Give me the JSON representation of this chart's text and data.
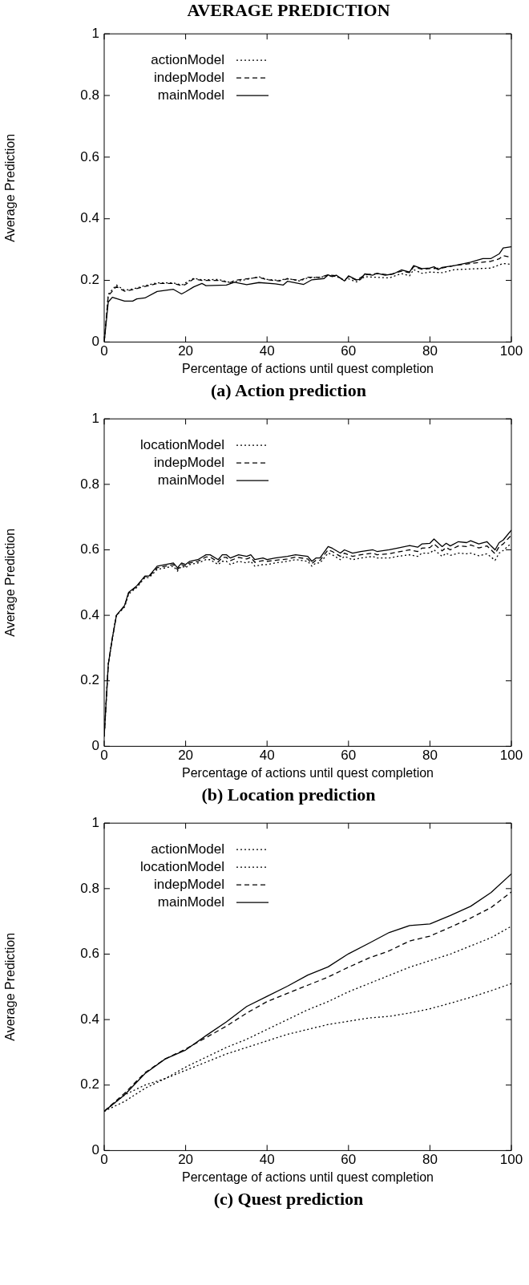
{
  "chart_data": [
    {
      "type": "line",
      "title": "AVERAGE PREDICTION",
      "xlabel": "Percentage of actions until quest completion",
      "ylabel": "Average Prediction",
      "xlim": [
        0,
        100
      ],
      "xticks": [
        0,
        20,
        40,
        60,
        80,
        100
      ],
      "ylim": [
        0,
        1
      ],
      "yticks": [
        0,
        0.2,
        0.4,
        0.6,
        0.8,
        1
      ],
      "grid": false,
      "legend": "top left",
      "marker": "none",
      "annotations": [
        "(a) Action prediction"
      ],
      "series": [
        {
          "name": "actionModel",
          "color": "#000000",
          "line_style": "dotted",
          "x": [
            0,
            1,
            3,
            5,
            7,
            10,
            13,
            17,
            19,
            22,
            24,
            28,
            31,
            35,
            38,
            40,
            43,
            45,
            48,
            50,
            53,
            55,
            57,
            59,
            60,
            62,
            64,
            67,
            70,
            73,
            75,
            76,
            78,
            80,
            83,
            86,
            90,
            95,
            98,
            100
          ],
          "values": [
            0,
            0.155,
            0.185,
            0.168,
            0.172,
            0.183,
            0.192,
            0.192,
            0.185,
            0.207,
            0.202,
            0.203,
            0.193,
            0.203,
            0.212,
            0.203,
            0.2,
            0.206,
            0.198,
            0.208,
            0.21,
            0.215,
            0.213,
            0.2,
            0.205,
            0.195,
            0.212,
            0.21,
            0.208,
            0.222,
            0.215,
            0.235,
            0.223,
            0.227,
            0.225,
            0.235,
            0.237,
            0.24,
            0.255,
            0.252
          ]
        },
        {
          "name": "indepModel",
          "color": "#000000",
          "line_style": "dashed",
          "x": [
            0,
            1,
            3,
            5,
            7,
            10,
            13,
            17,
            19,
            20,
            22,
            24,
            28,
            31,
            32,
            35,
            38,
            40,
            43,
            45,
            48,
            50,
            53,
            55,
            57,
            59,
            60,
            62,
            64,
            67,
            70,
            73,
            75,
            76,
            78,
            80,
            83,
            86,
            90,
            95,
            97,
            98,
            100
          ],
          "values": [
            0,
            0.15,
            0.18,
            0.165,
            0.17,
            0.18,
            0.19,
            0.19,
            0.183,
            0.187,
            0.205,
            0.2,
            0.2,
            0.193,
            0.2,
            0.205,
            0.21,
            0.202,
            0.198,
            0.205,
            0.2,
            0.21,
            0.21,
            0.218,
            0.215,
            0.2,
            0.212,
            0.2,
            0.218,
            0.222,
            0.218,
            0.23,
            0.225,
            0.245,
            0.236,
            0.238,
            0.24,
            0.248,
            0.255,
            0.262,
            0.27,
            0.28,
            0.275
          ]
        },
        {
          "name": "mainModel",
          "color": "#000000",
          "line_style": "solid",
          "x": [
            0,
            1,
            2,
            5,
            7,
            8,
            10,
            13,
            17,
            19,
            20,
            22,
            24,
            25,
            30,
            32,
            35,
            38,
            42,
            44,
            45,
            49,
            51,
            54,
            55,
            56,
            57,
            59,
            60,
            62,
            63,
            64,
            66,
            67,
            69,
            71,
            73,
            75,
            76,
            78,
            80,
            81,
            82,
            83,
            86,
            90,
            93,
            95,
            97,
            98,
            100
          ],
          "values": [
            0,
            0.13,
            0.145,
            0.133,
            0.133,
            0.14,
            0.143,
            0.164,
            0.171,
            0.156,
            0.163,
            0.179,
            0.19,
            0.183,
            0.185,
            0.194,
            0.186,
            0.193,
            0.189,
            0.185,
            0.197,
            0.187,
            0.202,
            0.206,
            0.218,
            0.212,
            0.217,
            0.198,
            0.215,
            0.202,
            0.204,
            0.221,
            0.217,
            0.223,
            0.217,
            0.221,
            0.234,
            0.227,
            0.248,
            0.238,
            0.24,
            0.244,
            0.235,
            0.242,
            0.248,
            0.259,
            0.271,
            0.271,
            0.286,
            0.305,
            0.309
          ]
        }
      ]
    },
    {
      "type": "line",
      "xlabel": "Percentage of actions until quest completion",
      "ylabel": "Average Prediction",
      "xlim": [
        0,
        100
      ],
      "xticks": [
        0,
        20,
        40,
        60,
        80,
        100
      ],
      "ylim": [
        0,
        1
      ],
      "yticks": [
        0,
        0.2,
        0.4,
        0.6,
        0.8,
        1
      ],
      "grid": false,
      "legend": "top left",
      "marker": "none",
      "annotations": [
        "(b) Location prediction"
      ],
      "series": [
        {
          "name": "locationModel",
          "color": "#000000",
          "line_style": "dotted",
          "x": [
            0,
            1,
            2,
            3,
            5,
            6,
            8,
            10,
            11,
            13,
            15,
            17,
            18,
            19,
            20,
            21,
            23,
            25,
            26,
            28,
            29,
            30,
            31,
            33,
            35,
            36,
            37,
            39,
            40,
            42,
            45,
            47,
            50,
            51,
            52,
            53,
            55,
            56,
            58,
            59,
            61,
            63,
            66,
            67,
            70,
            72,
            75,
            77,
            78,
            80,
            81,
            83,
            84,
            85,
            87,
            89,
            90,
            92,
            94,
            95,
            96,
            97,
            98,
            100
          ],
          "values": [
            0.03,
            0.25,
            0.33,
            0.4,
            0.425,
            0.465,
            0.485,
            0.515,
            0.515,
            0.54,
            0.545,
            0.55,
            0.535,
            0.55,
            0.545,
            0.555,
            0.56,
            0.57,
            0.57,
            0.555,
            0.565,
            0.565,
            0.555,
            0.565,
            0.56,
            0.565,
            0.55,
            0.555,
            0.555,
            0.56,
            0.565,
            0.57,
            0.565,
            0.55,
            0.56,
            0.56,
            0.59,
            0.585,
            0.57,
            0.58,
            0.57,
            0.575,
            0.58,
            0.575,
            0.575,
            0.58,
            0.585,
            0.58,
            0.59,
            0.59,
            0.6,
            0.58,
            0.59,
            0.583,
            0.59,
            0.588,
            0.59,
            0.582,
            0.588,
            0.578,
            0.568,
            0.59,
            0.598,
            0.62
          ]
        },
        {
          "name": "indepModel",
          "color": "#000000",
          "line_style": "dashed",
          "x": [
            0,
            1,
            2,
            3,
            5,
            6,
            8,
            10,
            11,
            13,
            15,
            17,
            18,
            19,
            20,
            21,
            23,
            25,
            26,
            28,
            29,
            30,
            31,
            33,
            35,
            36,
            37,
            39,
            40,
            42,
            45,
            47,
            50,
            51,
            52,
            53,
            55,
            56,
            58,
            59,
            61,
            63,
            66,
            67,
            70,
            72,
            75,
            77,
            78,
            80,
            81,
            83,
            84,
            85,
            87,
            89,
            90,
            92,
            94,
            95,
            96,
            97,
            98,
            100
          ],
          "values": [
            0.03,
            0.25,
            0.33,
            0.4,
            0.428,
            0.468,
            0.488,
            0.518,
            0.518,
            0.545,
            0.55,
            0.555,
            0.54,
            0.555,
            0.55,
            0.56,
            0.565,
            0.578,
            0.578,
            0.563,
            0.577,
            0.577,
            0.567,
            0.577,
            0.572,
            0.577,
            0.562,
            0.567,
            0.565,
            0.568,
            0.572,
            0.578,
            0.572,
            0.558,
            0.568,
            0.568,
            0.6,
            0.595,
            0.58,
            0.59,
            0.58,
            0.585,
            0.59,
            0.585,
            0.588,
            0.593,
            0.6,
            0.595,
            0.605,
            0.607,
            0.618,
            0.597,
            0.607,
            0.6,
            0.612,
            0.61,
            0.615,
            0.606,
            0.612,
            0.6,
            0.588,
            0.61,
            0.618,
            0.645
          ]
        },
        {
          "name": "mainModel",
          "color": "#000000",
          "line_style": "solid",
          "x": [
            0,
            1,
            2,
            3,
            5,
            6,
            8,
            10,
            11,
            13,
            15,
            17,
            18,
            19,
            20,
            21,
            23,
            25,
            26,
            28,
            29,
            30,
            31,
            33,
            35,
            36,
            37,
            39,
            40,
            42,
            45,
            47,
            50,
            51,
            52,
            53,
            55,
            56,
            58,
            59,
            61,
            63,
            66,
            67,
            70,
            72,
            75,
            77,
            78,
            80,
            81,
            83,
            84,
            85,
            87,
            89,
            90,
            92,
            94,
            95,
            96,
            97,
            98,
            100
          ],
          "values": [
            0.03,
            0.25,
            0.33,
            0.4,
            0.43,
            0.47,
            0.49,
            0.52,
            0.52,
            0.55,
            0.555,
            0.56,
            0.545,
            0.56,
            0.555,
            0.565,
            0.57,
            0.585,
            0.585,
            0.57,
            0.585,
            0.585,
            0.575,
            0.585,
            0.58,
            0.585,
            0.57,
            0.575,
            0.57,
            0.575,
            0.58,
            0.585,
            0.58,
            0.565,
            0.575,
            0.575,
            0.61,
            0.605,
            0.59,
            0.6,
            0.59,
            0.595,
            0.6,
            0.595,
            0.6,
            0.605,
            0.613,
            0.608,
            0.618,
            0.62,
            0.633,
            0.61,
            0.62,
            0.612,
            0.625,
            0.622,
            0.628,
            0.618,
            0.625,
            0.612,
            0.6,
            0.622,
            0.63,
            0.66
          ]
        }
      ]
    },
    {
      "type": "line",
      "xlabel": "Percentage of actions until quest completion",
      "ylabel": "Average Prediction",
      "xlim": [
        0,
        100
      ],
      "xticks": [
        0,
        20,
        40,
        60,
        80,
        100
      ],
      "ylim": [
        0,
        1
      ],
      "yticks": [
        0,
        0.2,
        0.4,
        0.6,
        0.8,
        1
      ],
      "grid": false,
      "legend": "top left",
      "marker": "none",
      "annotations": [
        "(c) Quest prediction"
      ],
      "series": [
        {
          "name": "actionModel",
          "color": "#000000",
          "line_style": "dotted",
          "x": [
            0,
            5,
            10,
            15,
            20,
            25,
            30,
            35,
            40,
            45,
            50,
            55,
            60,
            65,
            70,
            75,
            80,
            85,
            90,
            95,
            100
          ],
          "values": [
            0.12,
            0.17,
            0.2,
            0.22,
            0.245,
            0.27,
            0.295,
            0.315,
            0.335,
            0.355,
            0.37,
            0.385,
            0.395,
            0.405,
            0.41,
            0.42,
            0.433,
            0.45,
            0.468,
            0.488,
            0.51
          ]
        },
        {
          "name": "locationModel",
          "color": "#000000",
          "line_style": "dotted",
          "x": [
            0,
            5,
            10,
            15,
            20,
            25,
            30,
            35,
            40,
            45,
            50,
            55,
            60,
            65,
            70,
            75,
            80,
            85,
            90,
            95,
            100
          ],
          "values": [
            0.12,
            0.15,
            0.19,
            0.22,
            0.255,
            0.285,
            0.315,
            0.34,
            0.37,
            0.4,
            0.43,
            0.455,
            0.485,
            0.51,
            0.535,
            0.56,
            0.58,
            0.6,
            0.625,
            0.65,
            0.685
          ]
        },
        {
          "name": "indepModel",
          "color": "#000000",
          "line_style": "dashed",
          "x": [
            0,
            5,
            10,
            15,
            20,
            25,
            30,
            35,
            40,
            45,
            50,
            55,
            60,
            65,
            70,
            75,
            80,
            85,
            90,
            95,
            100
          ],
          "values": [
            0.12,
            0.175,
            0.238,
            0.28,
            0.31,
            0.345,
            0.38,
            0.42,
            0.455,
            0.48,
            0.505,
            0.53,
            0.56,
            0.588,
            0.61,
            0.64,
            0.655,
            0.682,
            0.71,
            0.742,
            0.79
          ]
        },
        {
          "name": "mainModel",
          "color": "#000000",
          "line_style": "solid",
          "x": [
            0,
            5,
            10,
            15,
            20,
            25,
            30,
            35,
            40,
            45,
            50,
            55,
            60,
            65,
            70,
            75,
            80,
            85,
            90,
            95,
            100
          ],
          "values": [
            0.12,
            0.17,
            0.235,
            0.28,
            0.307,
            0.351,
            0.393,
            0.44,
            0.471,
            0.502,
            0.536,
            0.561,
            0.601,
            0.633,
            0.666,
            0.687,
            0.692,
            0.718,
            0.746,
            0.788,
            0.845
          ]
        }
      ]
    }
  ]
}
